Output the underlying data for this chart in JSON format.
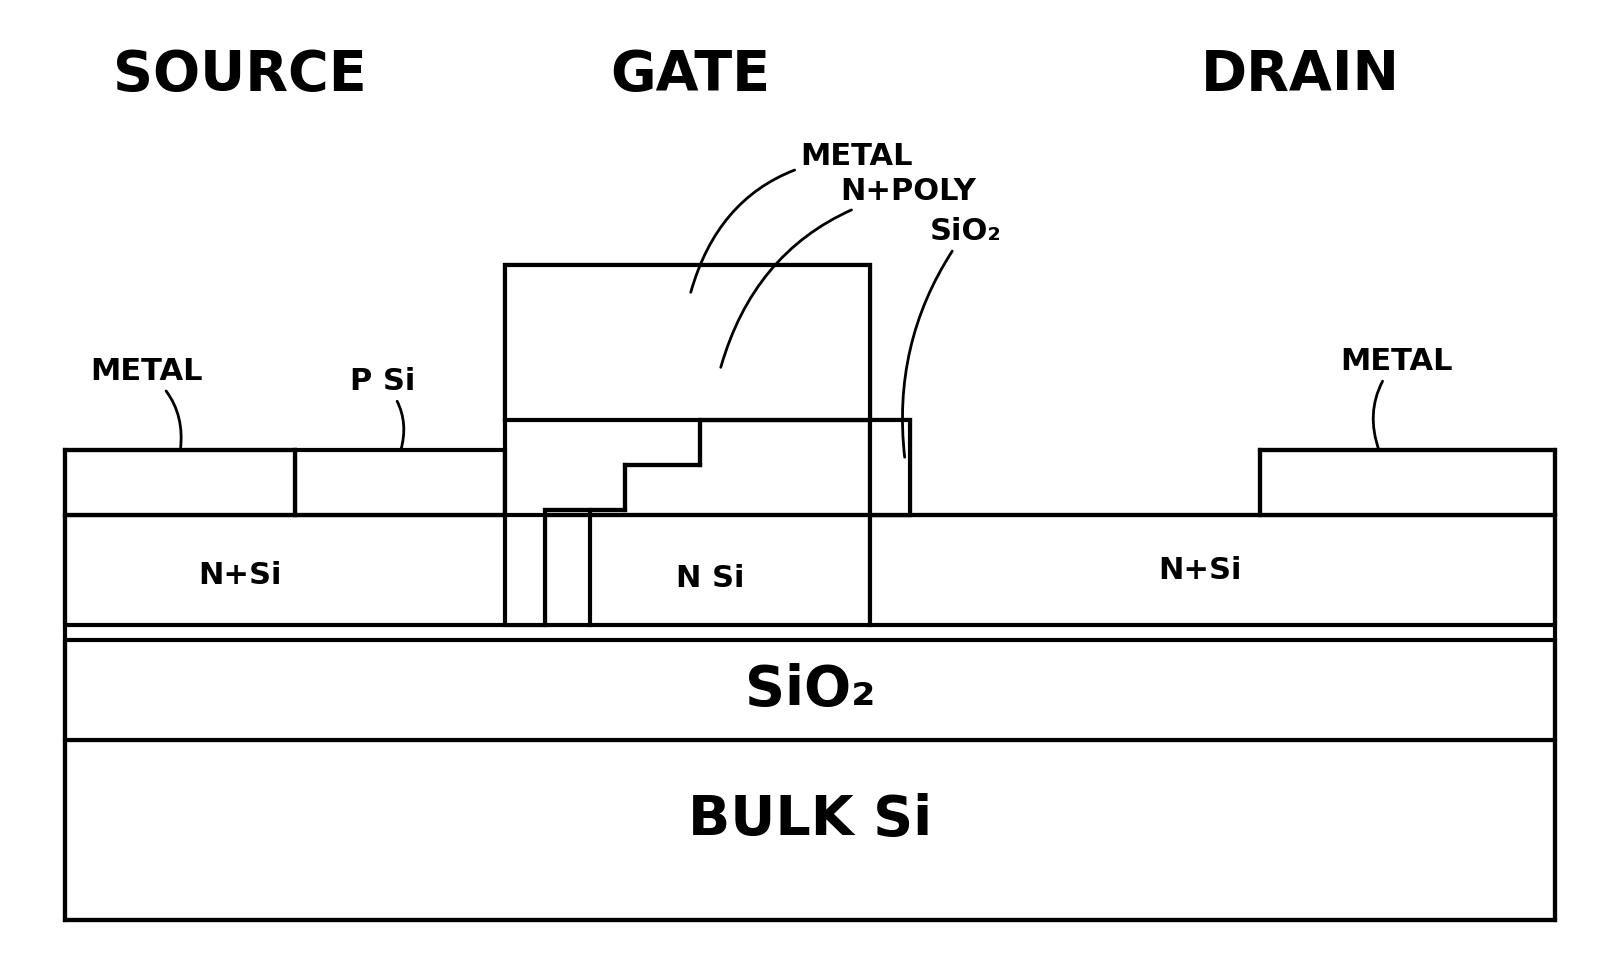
{
  "bg_color": "#ffffff",
  "line_color": "#000000",
  "lw": 3.0,
  "title_source": "SOURCE",
  "title_gate": "GATE",
  "title_drain": "DRAIN",
  "labels": {
    "METAL_source": "METAL",
    "PSi": "P Si",
    "METAL_gate": "METAL",
    "NpPOLY": "N+POLY",
    "SiO2_gate": "SiO₂",
    "METAL_drain": "METAL",
    "NpSi_source": "N+Si",
    "NSi": "N Si",
    "NpSi_drain": "N+Si",
    "SiO2_insulator": "SiO₂",
    "BULK": "BULK Si"
  },
  "font_size_title": 40,
  "font_size_label": 22,
  "font_size_region": 22,
  "font_weight": "bold"
}
